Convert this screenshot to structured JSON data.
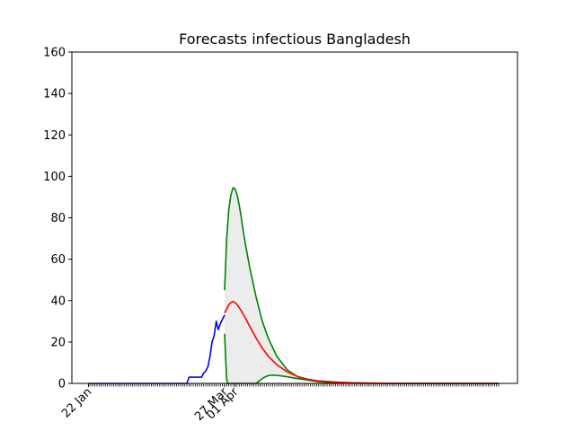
{
  "chart_data": {
    "type": "line",
    "title": "Forecasts infectious Bangladesh",
    "xlabel": "",
    "ylabel": "",
    "ylim": [
      0,
      160
    ],
    "yticks": [
      0,
      20,
      40,
      60,
      80,
      100,
      120,
      140,
      160
    ],
    "x_labels": [
      "22 Jan",
      "27 Mar",
      "01 Apr"
    ],
    "x_label_days": [
      0,
      65,
      70
    ],
    "xlim_days": [
      -8,
      205
    ],
    "minor_tick_days_range": [
      0,
      196
    ],
    "grid": false,
    "colors": {
      "observed": "#0000ff",
      "forecast": "#ff0000",
      "bounds": "#008000",
      "band": "#ececec"
    },
    "series": [
      {
        "role": "observed",
        "color": "#0000ff",
        "x": [
          0,
          10,
          20,
          30,
          40,
          47,
          48,
          49,
          50,
          51,
          52,
          53,
          54,
          55,
          56,
          57,
          58,
          59,
          60,
          61,
          62,
          63,
          64,
          65
        ],
        "y": [
          0,
          0,
          0,
          0,
          0,
          0,
          3,
          3,
          3,
          3,
          3,
          3,
          3,
          5,
          6,
          8,
          13,
          20,
          23,
          30,
          26,
          29,
          31,
          33
        ]
      },
      {
        "role": "forecast",
        "color": "#ff0000",
        "x": [
          65,
          66,
          67,
          68,
          69,
          70,
          71,
          72,
          73,
          75,
          77,
          80,
          83,
          86,
          90,
          95,
          100,
          105,
          110,
          120,
          130,
          140,
          150,
          160,
          170,
          180,
          190,
          196
        ],
        "y": [
          34,
          36,
          38,
          39,
          39.5,
          39,
          38,
          36.5,
          35,
          31.5,
          27.5,
          22,
          17,
          13,
          9,
          5.5,
          3.3,
          2.0,
          1.2,
          0.5,
          0.2,
          0.1,
          0.05,
          0.03,
          0.02,
          0.01,
          0.01,
          0.01
        ]
      },
      {
        "role": "upper-bound",
        "color": "#008000",
        "x": [
          65,
          66,
          67,
          68,
          69,
          70,
          71,
          72,
          73,
          74,
          75,
          77,
          80,
          83,
          86,
          90,
          95,
          100,
          105,
          110,
          120,
          130,
          140,
          150,
          160,
          170,
          180,
          190,
          196
        ],
        "y": [
          45,
          70,
          84,
          91,
          94.5,
          94,
          91,
          86,
          80,
          73,
          67,
          56,
          42,
          30,
          21.5,
          13,
          6.5,
          3.2,
          1.6,
          0.8,
          0.2,
          0.05,
          0.02,
          0.01,
          0.01,
          0.01,
          0.01,
          0.01,
          0.01
        ]
      },
      {
        "role": "lower-bound",
        "color": "#008000",
        "x": [
          65,
          65.5,
          66,
          66.5,
          80,
          82,
          84,
          86,
          88,
          90,
          93,
          96,
          100,
          105,
          110,
          120,
          130,
          140,
          150,
          160,
          170,
          180,
          190,
          196
        ],
        "y": [
          24,
          12,
          2,
          0,
          0,
          1.5,
          3,
          3.8,
          4,
          3.9,
          3.5,
          3.0,
          2.3,
          1.6,
          1.1,
          0.5,
          0.2,
          0.1,
          0.05,
          0.02,
          0.01,
          0.01,
          0.01,
          0.01
        ]
      }
    ]
  }
}
